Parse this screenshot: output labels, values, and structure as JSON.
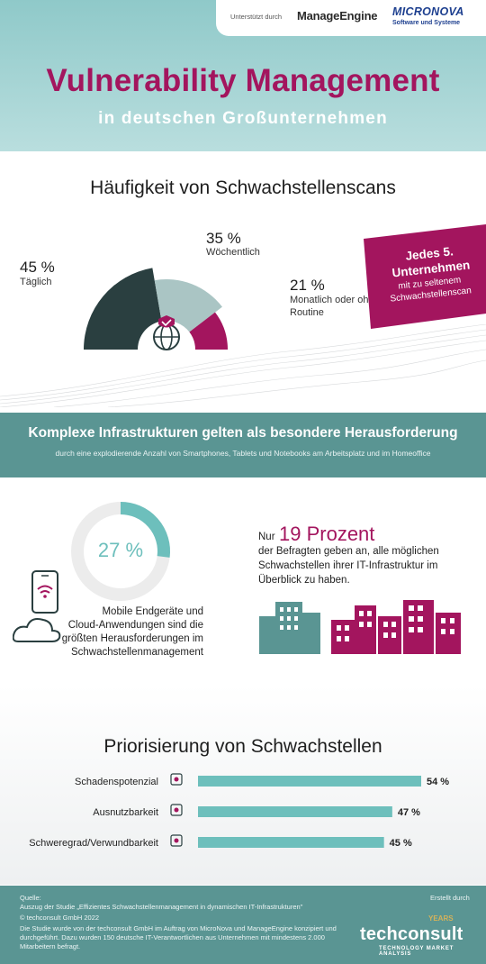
{
  "header": {
    "sponsor_label": "Unterstützt durch",
    "logo_manageengine": "ManageEngine",
    "logo_micronova": "MICRONOVA",
    "logo_micronova_sub": "Software und Systeme",
    "title": "Vulnerability Management",
    "subtitle": "in deutschen Großunternehmen"
  },
  "section1": {
    "title": "Häufigkeit von Schwachstellenscans",
    "badge_strong_1": "Jedes 5.",
    "badge_strong_2": "Unternehmen",
    "badge_rest_1": "mit zu seltenem",
    "badge_rest_2": "Schwachstellenscan"
  },
  "section2": {
    "title": "Komplexe Infrastrukturen gelten als besondere Herausforderung",
    "subtitle": "durch eine explodierende Anzahl von Smartphones, Tablets und Notebooks am Arbeitsplatz und im Homeoffice",
    "donut_value": "27 %",
    "left_text_1": "Mobile Endgeräte und",
    "left_text_2": "Cloud-Anwendungen sind die",
    "left_text_3": "größten Herausforderungen im",
    "left_text_4": "Schwachstellenmanagement",
    "right_pre": "Nur",
    "right_big": "19 Prozent",
    "right_text_1": "der Befragten geben an, alle möglichen",
    "right_text_2": "Schwachstellen ihrer IT-Infrastruktur im",
    "right_text_3": "Überblick zu haben."
  },
  "section3": {
    "title": "Priorisierung von Schwachstellen"
  },
  "footer": {
    "source_label": "Quelle:",
    "source": "Auszug der Studie „Effizientes Schwachstellenmanagement in dynamischen IT-Infrastrukturen\"",
    "copyright": "© techconsult GmbH 2022",
    "note": "Die Studie wurde von der techconsult GmbH im Auftrag von MicroNova und ManageEngine konzipiert und durchgeführt. Dazu wurden 150 deutsche IT-Verantwortlichen aus Unternehmen mit mindestens 2.000 Mitarbeitern befragt.",
    "created_by": "Erstellt durch",
    "logo_techconsult": "techconsult",
    "logo_years": "YEARS",
    "logo_tagline": "TECHNOLOGY MARKET ANALYSIS"
  },
  "colors": {
    "magenta": "#a3155e",
    "dark_teal": "#2a3f40",
    "light_teal": "#aac5c4",
    "bar_teal": "#6dbfbc",
    "banner_teal": "#5a9593"
  },
  "chart_data": [
    {
      "type": "pie",
      "subtype": "semicircle-donut",
      "categories": [
        "Täglich",
        "Wöchentlich",
        "Monatlich oder ohne Routine"
      ],
      "values": [
        45,
        35,
        21
      ],
      "value_labels": [
        "45 %",
        "35 %",
        "21 %"
      ],
      "title": "Häufigkeit von Schwachstellenscans",
      "colors": [
        "#2a3f40",
        "#aac5c4",
        "#a3155e"
      ]
    },
    {
      "type": "pie",
      "subtype": "donut",
      "values": [
        27
      ],
      "max": 100,
      "value_label": "27 %",
      "colors": [
        "#6dbfbc",
        "#ececec"
      ]
    },
    {
      "type": "bar",
      "orientation": "horizontal",
      "title": "Priorisierung von Schwachstellen",
      "categories": [
        "Schadenspotenzial",
        "Ausnutzbarkeit",
        "Schweregrad/Verwundbarkeit"
      ],
      "values": [
        54,
        47,
        45
      ],
      "value_labels": [
        "54 %",
        "47 %",
        "45 %"
      ],
      "icons": [
        "laptop-bug-icon",
        "circuit-icon",
        "envelope-bug-icon"
      ],
      "ylim": [
        0,
        54
      ],
      "color": "#6dbfbc"
    }
  ]
}
